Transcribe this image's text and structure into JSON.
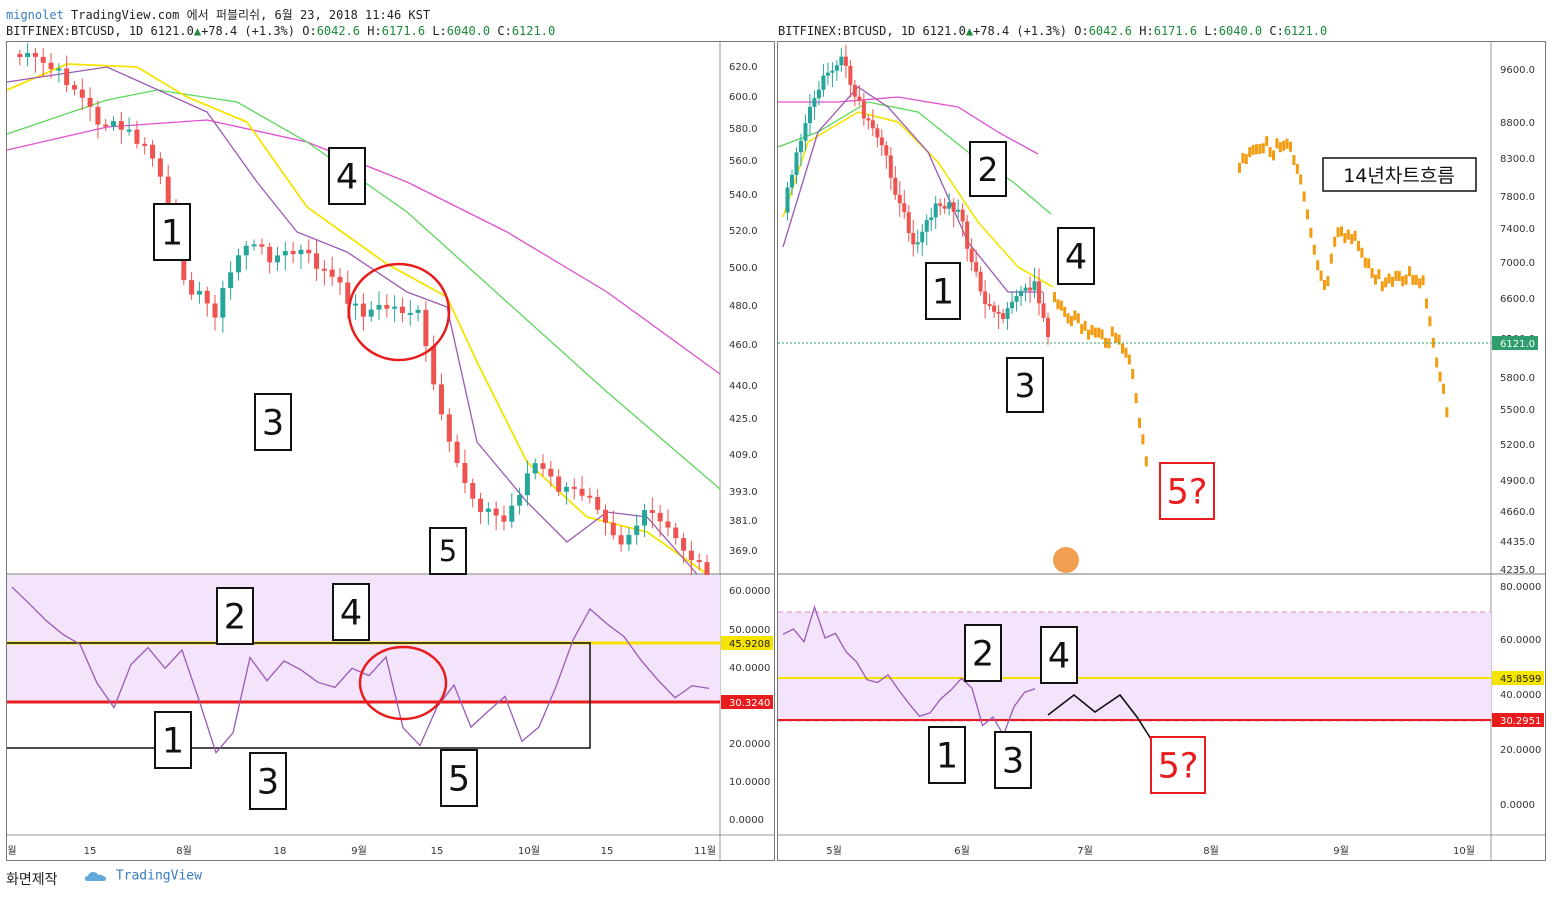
{
  "header": {
    "publisher": "mignolet",
    "published_line": "TradingView.com 에서 퍼블리쉬, 6월 23, 2018 11:46 KST",
    "symbol_left": "BITFINEX:BTCUSD, 1D 6121.0",
    "symbol_right": "BITFINEX:BTCUSD, 1D 6121.0",
    "change": "+78.4 (+1.3%)",
    "ohlc": {
      "o_label": "O:",
      "o": "6042.6",
      "h_label": "H:",
      "h": "6171.6",
      "l_label": "L:",
      "l": "6040.0",
      "c_label": "C:",
      "c": "6121.0"
    }
  },
  "footer": {
    "made_by": "화면제작",
    "brand": "TradingView"
  },
  "colors": {
    "up": "#26a69a",
    "down": "#ef5350",
    "yellow": "#f5e300",
    "green_ma": "#5cd65c",
    "magenta_ma": "#e04fd0",
    "purple": "#9b59b6",
    "orange": "#f39c12",
    "rsi_band": "#f3e3fb",
    "red": "#e81c1c"
  },
  "chart_data": [
    {
      "id": "left-price",
      "type": "candlestick",
      "y_ticks": [
        "620.0",
        "600.0",
        "580.0",
        "560.0",
        "540.0",
        "520.0",
        "500.0",
        "480.0",
        "460.0",
        "440.0",
        "425.0",
        "409.0",
        "393.0",
        "381.0",
        "369.0"
      ],
      "x_ticks": [
        "월",
        "15",
        "8월",
        "18",
        "9월",
        "15",
        "10월",
        "15",
        "11월"
      ],
      "wave_labels": [
        "1",
        "3",
        "4",
        "5"
      ]
    },
    {
      "id": "left-rsi",
      "type": "line",
      "y_ticks": [
        "60.0000",
        "50.0000",
        "40.0000",
        "30.0000",
        "20.0000",
        "10.0000",
        "0.0000"
      ],
      "level_high": "45.9208",
      "level_low": "30.3240",
      "wave_labels": [
        "1",
        "2",
        "3",
        "4",
        "5"
      ]
    },
    {
      "id": "right-price",
      "type": "candlestick",
      "y_ticks": [
        "9600.0",
        "8800.0",
        "8300.0",
        "7800.0",
        "7400.0",
        "7000.0",
        "6600.0",
        "6200.0",
        "5800.0",
        "5500.0",
        "5200.0",
        "4900.0",
        "4660.0",
        "4435.0",
        "4235.0"
      ],
      "price_label": "6121.0",
      "x_ticks": [
        "5월",
        "6월",
        "7월",
        "8월",
        "9월",
        "10월"
      ],
      "wave_labels": [
        "1",
        "2",
        "3",
        "4",
        "5?"
      ],
      "annotation": "14년차트흐름"
    },
    {
      "id": "right-rsi",
      "type": "line",
      "y_ticks": [
        "80.0000",
        "60.0000",
        "40.0000",
        "20.0000",
        "0.0000"
      ],
      "level_high": "45.8599",
      "level_low": "30.2951",
      "wave_labels": [
        "1",
        "2",
        "3",
        "4",
        "5?"
      ]
    }
  ]
}
